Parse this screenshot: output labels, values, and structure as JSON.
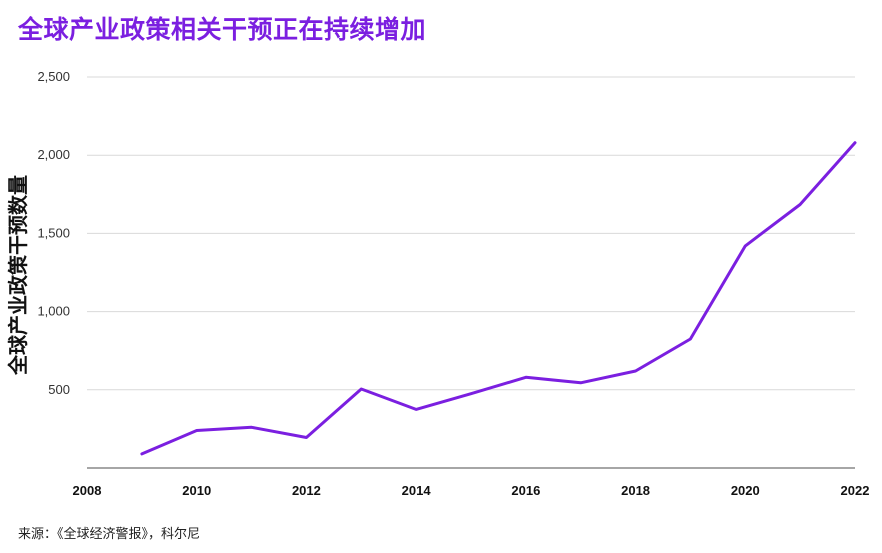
{
  "header": {
    "title": "全球产业政策相关干预正在持续增加"
  },
  "footer": {
    "source": "来源：《全球经济警报》，科尔尼"
  },
  "chart_data": {
    "type": "line",
    "title": "全球产业政策相关干预正在持续增加",
    "xlabel": "",
    "ylabel": "全球产业政策干预数量",
    "xlim": [
      2008,
      2022
    ],
    "ylim": [
      0,
      2500
    ],
    "x_ticks": [
      2008,
      2010,
      2012,
      2014,
      2016,
      2018,
      2020,
      2022
    ],
    "y_ticks": [
      500,
      1000,
      1500,
      2000,
      2500
    ],
    "y_tick_labels": [
      "500",
      "1,000",
      "1,500",
      "2,000",
      "2,500"
    ],
    "grid": "horizontal",
    "colors": {
      "line": "#7b1fe0",
      "title": "#7b1fe0",
      "grid": "#d9d9d9",
      "axis": "#888888"
    },
    "series": [
      {
        "x": [
          2009,
          2010,
          2011,
          2012,
          2013,
          2014,
          2015,
          2016,
          2017,
          2018,
          2019,
          2020,
          2021,
          2022
        ],
        "values": [
          90,
          240,
          260,
          195,
          505,
          375,
          475,
          580,
          545,
          620,
          825,
          1420,
          1685,
          2080
        ]
      }
    ]
  }
}
